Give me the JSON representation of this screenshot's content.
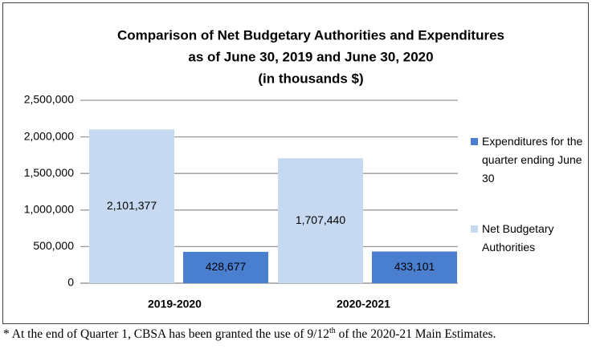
{
  "chart_data": {
    "type": "bar",
    "title": [
      "Comparison of Net Budgetary Authorities and Expenditures",
      "as of June 30, 2019 and June 30, 2020",
      "(in thousands $)"
    ],
    "categories": [
      "2019-2020",
      "2020-2021"
    ],
    "series": [
      {
        "name": "Net Budgetary Authorities",
        "color": "#c6d9f1",
        "values": [
          2101377,
          1707440
        ],
        "value_labels": [
          "2,101,377",
          "1,707,440"
        ]
      },
      {
        "name": "Expenditures for the quarter ending June 30",
        "color": "#4a7fd0",
        "values": [
          428677,
          433101
        ],
        "value_labels": [
          "428,677",
          "433,101"
        ]
      }
    ],
    "ylim": [
      0,
      2500000
    ],
    "yticks": [
      0,
      {
        "value": 500000,
        "label": "500,000"
      },
      {
        "value": 1000000,
        "label": "1,000,000"
      },
      {
        "value": 1500000,
        "label": "1,500,000"
      },
      {
        "value": 2000000,
        "label": "2,000,000"
      },
      {
        "value": 2500000,
        "label": "2,500,000"
      }
    ],
    "grid": true,
    "legend": "right"
  },
  "footnote": {
    "before": "* At the end of Quarter 1, CBSA has been granted the use of 9/12",
    "sup": "th",
    "after": " of the 2020-21 Main Estimates."
  }
}
